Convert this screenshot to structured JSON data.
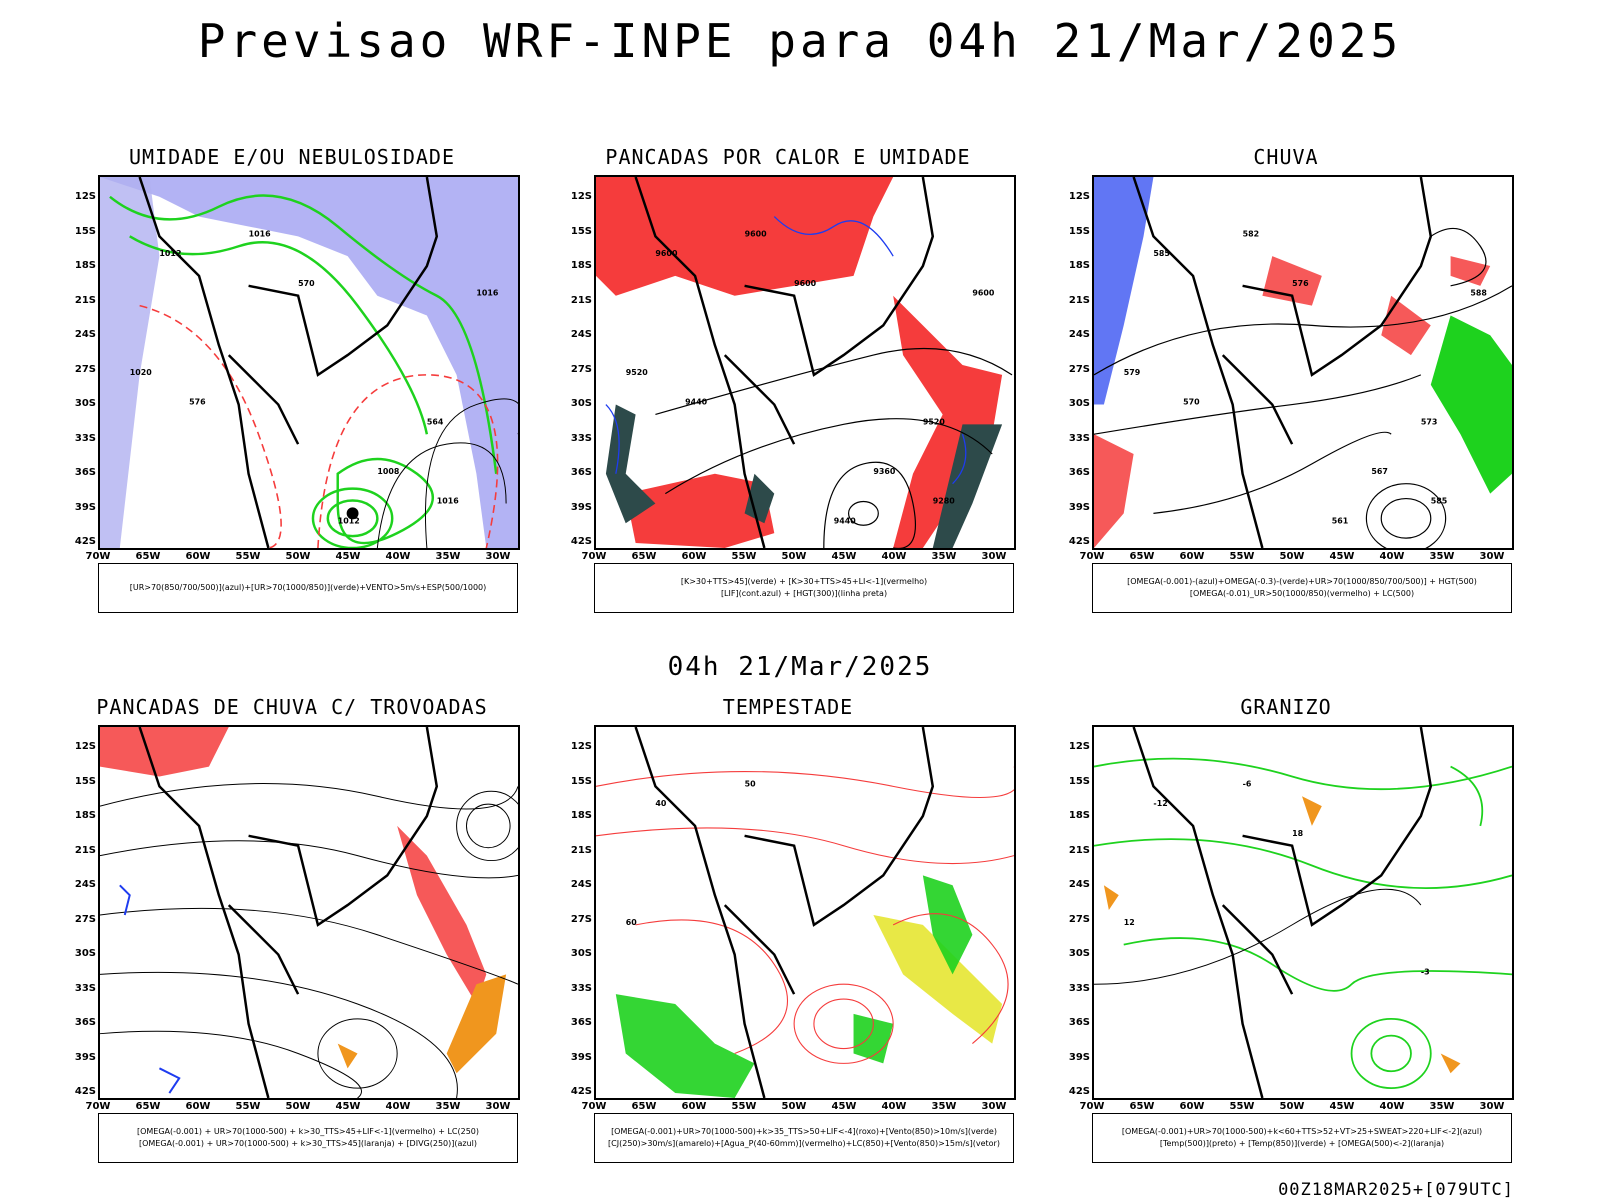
{
  "header": {
    "title": "Previsao WRF-INPE  para 04h 21/Mar/2025",
    "mid_title": "04h 21/Mar/2025",
    "footer": "00Z18MAR2025+[079UTC]"
  },
  "axes": {
    "lat_labels": [
      "12S",
      "15S",
      "18S",
      "21S",
      "24S",
      "27S",
      "30S",
      "33S",
      "36S",
      "39S",
      "42S"
    ],
    "lon_labels": [
      "70W",
      "65W",
      "60W",
      "55W",
      "50W",
      "45W",
      "40W",
      "35W",
      "30W"
    ]
  },
  "panels": [
    {
      "id": "umidade",
      "title": "UMIDADE E/OU NEBULOSIDADE",
      "legend": [
        "[UR>70(850/700/500)](azul)+[UR>70(1000/850)](verde)+VENTO>5m/s+ESP(500/1000)"
      ],
      "contour_labels": [
        "1012",
        "1016",
        "1020",
        "570",
        "564",
        "576",
        "1008",
        "1012",
        "1016",
        "1016"
      ]
    },
    {
      "id": "pancadas-calor",
      "title": "PANCADAS POR CALOR E UMIDADE",
      "legend": [
        "[K>30+TTS>45](verde) + [K>30+TTS>45+LI<-1](vermelho)",
        "[LIF](cont.azul) + [HGT(300)](linha preta)"
      ],
      "contour_labels": [
        "9600",
        "9600",
        "9520",
        "9600",
        "9520",
        "9440",
        "9360",
        "9440",
        "9280",
        "9600"
      ]
    },
    {
      "id": "chuva",
      "title": "CHUVA",
      "legend": [
        "[OMEGA(-0.001)-(azul)+OMEGA(-0.3)-(verde)+UR>70(1000/850/700/500)] + HGT(500)",
        "[OMEGA(-0.01)_UR>50(1000/850)(vermelho) + LC(500)"
      ],
      "contour_labels": [
        "585",
        "582",
        "579",
        "576",
        "573",
        "570",
        "567",
        "561",
        "585",
        "588"
      ]
    },
    {
      "id": "trovoadas",
      "title": "PANCADAS DE CHUVA C/ TROVOADAS",
      "legend": [
        "[OMEGA(-0.001) + UR>70(1000-500) + k>30_TTS>45+LIF<-1](vermelho) + LC(250)",
        "[OMEGA(-0.001) + UR>70(1000-500) + k>30_TTS>45](laranja) + [DIVG(250)](azul)"
      ],
      "contour_labels": []
    },
    {
      "id": "tempestade",
      "title": "TEMPESTADE",
      "legend": [
        "[OMEGA(-0.001)+UR>70(1000-500)+k>35_TTS>50+LIF<-4](roxo)+[Vento(850)>10m/s](verde)",
        "[CJ(250)>30m/s](amarelo)+[Agua_P(40-60mm)](vermelho)+LC(850)+[Vento(850)>15m/s](vetor)"
      ],
      "contour_labels": [
        "40",
        "50",
        "60"
      ]
    },
    {
      "id": "granizo",
      "title": "GRANIZO",
      "legend": [
        "[OMEGA(-0.001)+UR>70(1000-500)+k<60+TTS>52+VT>25+SWEAT>220+LIF<-2](azul)",
        "[Temp(500)](preto) + [Temp(850)](verde) + [OMEGA(500)<-2](laranja)"
      ],
      "contour_labels": [
        "-12",
        "-6",
        "12",
        "18",
        "-3"
      ]
    }
  ],
  "colors": {
    "blue_humidity": "#9a9af0",
    "green": "#1ed21e",
    "red": "#f53c3c",
    "dark_teal": "#2d4a4a",
    "yellow": "#e6e632",
    "orange": "#f0961e",
    "blue": "#1e3cf0"
  }
}
